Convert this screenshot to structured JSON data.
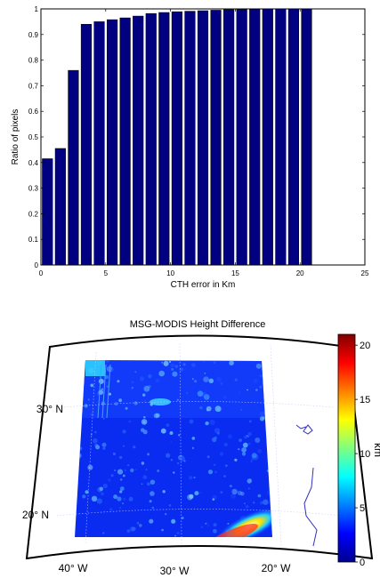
{
  "chart_data": [
    {
      "type": "bar",
      "xlabel": "CTH error in Km",
      "ylabel": "Ratio of pixels",
      "xlim": [
        0,
        25
      ],
      "ylim": [
        0,
        1
      ],
      "x_ticks": [
        "0",
        "5",
        "10",
        "15",
        "20",
        "25"
      ],
      "y_ticks": [
        "0",
        "0.1",
        "0.2",
        "0.3",
        "0.4",
        "0.5",
        "0.6",
        "0.7",
        "0.8",
        "0.9",
        "1"
      ],
      "x": [
        0.5,
        1.5,
        2.5,
        3.5,
        4.5,
        5.5,
        6.5,
        7.5,
        8.5,
        9.5,
        10.5,
        11.5,
        12.5,
        13.5,
        14.5,
        15.5,
        16.5,
        17.5,
        18.5,
        19.5,
        20.5
      ],
      "values": [
        0.415,
        0.455,
        0.76,
        0.94,
        0.95,
        0.958,
        0.965,
        0.972,
        0.982,
        0.986,
        0.989,
        0.991,
        0.993,
        0.995,
        0.997,
        0.998,
        0.999,
        1.0,
        1.0,
        1.0,
        1.0
      ],
      "bar_color": "#000080",
      "grid": false
    },
    {
      "type": "heatmap",
      "title": "MSG-MODIS Height Difference",
      "colorbar_label": "km",
      "colorbar_ticks": [
        "0",
        "5",
        "10",
        "15",
        "20"
      ],
      "colorbar_range": [
        0,
        21
      ],
      "lat_labels": [
        "30° N",
        "20° N"
      ],
      "lon_labels": [
        "40° W",
        "30° W",
        "20° W"
      ],
      "colormap": "jet"
    }
  ]
}
